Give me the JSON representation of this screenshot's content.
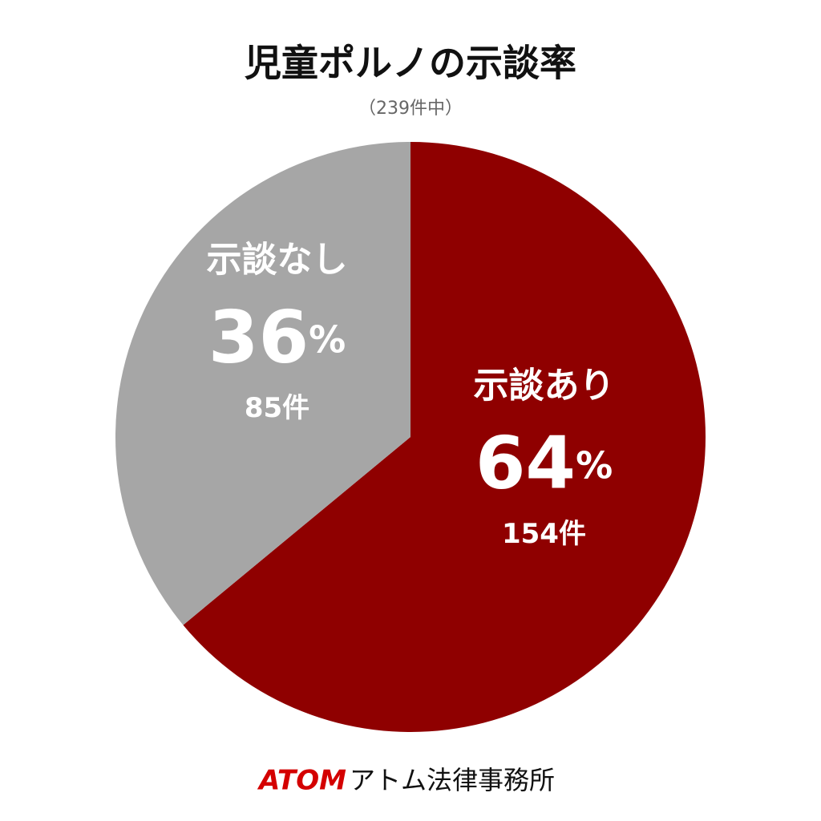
{
  "chart_data": {
    "type": "pie",
    "title": "児童ポルノの示談率",
    "subtitle": "（239件中）",
    "categories": [
      "示談あり",
      "示談なし"
    ],
    "values": [
      64,
      36
    ],
    "value_labels": [
      "64%",
      "36%"
    ],
    "count_labels": [
      "154件",
      "85件"
    ],
    "colors": [
      "#8f0000",
      "#a6a6a6"
    ],
    "start": "top",
    "direction": "clockwise"
  },
  "footer": {
    "brand": "ATOM",
    "name": "アトム法律事務所"
  }
}
